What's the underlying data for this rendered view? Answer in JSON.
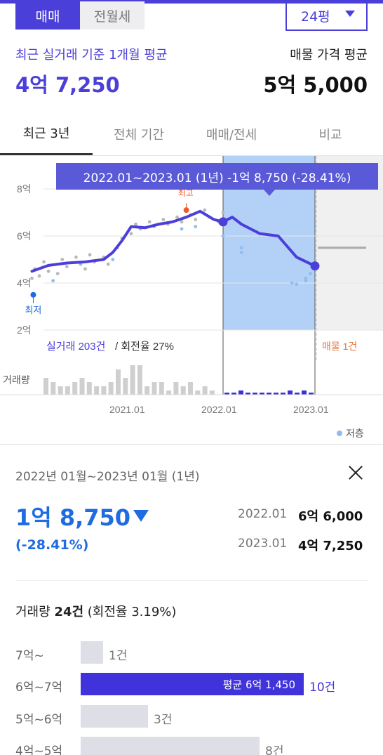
{
  "trade_toggle": {
    "buy": "매매",
    "rent": "전월세"
  },
  "size_select": {
    "value": "24평"
  },
  "summary": {
    "recent_label": "최근 실거래 기준 1개월 평균",
    "recent_value": "4억 7,250",
    "listing_label": "매물 가격 평균",
    "listing_value": "5억 5,000"
  },
  "tabs": [
    "최근 3년",
    "전체 기간",
    "매매/전세",
    "비교"
  ],
  "tooltip": "2022.01~2023.01 (1년)  -1억 8,750 (-28.41%)",
  "colors": {
    "accent": "#4b3fd9",
    "blue": "#1f6be0",
    "max_marker": "#f05a28",
    "listing": "#e8763c",
    "selection": "#b3d1f7"
  },
  "chart_data": {
    "type": "line",
    "y_ticks": [
      "8억",
      "6억",
      "4억",
      "2억"
    ],
    "x_ticks": [
      "2021.01",
      "2022.01",
      "2023.01"
    ],
    "ylim": [
      2,
      8
    ],
    "y_unit": "억",
    "series": [
      {
        "values": [
          [
            2019.92,
            4.5
          ],
          [
            2020.1,
            4.75
          ],
          [
            2020.3,
            4.85
          ],
          [
            2020.5,
            4.9
          ],
          [
            2020.7,
            5.0
          ],
          [
            2020.8,
            5.3
          ],
          [
            2020.9,
            5.8
          ],
          [
            2021.0,
            6.4
          ],
          [
            2021.15,
            6.35
          ],
          [
            2021.3,
            6.5
          ],
          [
            2021.45,
            6.6
          ],
          [
            2021.6,
            6.8
          ],
          [
            2021.75,
            7.05
          ],
          [
            2021.9,
            6.7
          ],
          [
            2022.0,
            6.6
          ],
          [
            2022.1,
            6.8
          ],
          [
            2022.2,
            6.5
          ],
          [
            2022.4,
            6.1
          ],
          [
            2022.6,
            6.0
          ],
          [
            2022.8,
            5.1
          ],
          [
            2023.0,
            4.725
          ]
        ]
      }
    ],
    "scatter_gray": [
      [
        2019.92,
        4.2
      ],
      [
        2019.95,
        4.6
      ],
      [
        2020.0,
        4.3
      ],
      [
        2020.05,
        4.9
      ],
      [
        2020.1,
        4.5
      ],
      [
        2020.2,
        4.4
      ],
      [
        2020.25,
        5.0
      ],
      [
        2020.3,
        4.7
      ],
      [
        2020.4,
        5.1
      ],
      [
        2020.5,
        4.6
      ],
      [
        2020.55,
        5.2
      ],
      [
        2020.6,
        4.9
      ],
      [
        2020.7,
        5.1
      ],
      [
        2020.75,
        4.8
      ],
      [
        2020.85,
        5.5
      ],
      [
        2020.9,
        5.9
      ],
      [
        2021.0,
        6.1
      ],
      [
        2021.05,
        6.5
      ],
      [
        2021.1,
        6.3
      ],
      [
        2021.2,
        6.6
      ],
      [
        2021.25,
        6.4
      ],
      [
        2021.35,
        6.7
      ],
      [
        2021.4,
        6.5
      ],
      [
        2021.5,
        6.8
      ],
      [
        2021.55,
        6.6
      ],
      [
        2021.65,
        6.9
      ],
      [
        2021.7,
        6.7
      ],
      [
        2021.8,
        7.1
      ],
      [
        2021.85,
        6.8
      ],
      [
        2021.95,
        6.6
      ],
      [
        2022.0,
        7.0
      ]
    ],
    "scatter_blue": [
      [
        2020.15,
        4.1
      ],
      [
        2020.45,
        4.8
      ],
      [
        2020.8,
        5.0
      ],
      [
        2021.55,
        6.3
      ],
      [
        2021.7,
        6.4
      ],
      [
        2022.0,
        6.0
      ],
      [
        2022.2,
        5.5
      ],
      [
        2022.2,
        5.3
      ],
      [
        2022.75,
        4.0
      ],
      [
        2022.8,
        3.95
      ],
      [
        2022.9,
        4.2
      ],
      [
        2022.9,
        4.1
      ],
      [
        2022.95,
        4.4
      ]
    ],
    "low_point": {
      "x": 2019.95,
      "y": 3.5,
      "label": "최저"
    },
    "high_point": {
      "x": 2021.6,
      "y": 7.1,
      "label": "최고"
    },
    "selection": {
      "start": 2022.0,
      "end": 2023.0
    },
    "listing_level": 5.5,
    "volume_label": "거래량",
    "volume_gray": [
      4,
      3,
      2,
      2,
      3,
      4,
      3,
      2,
      2,
      3,
      6,
      4,
      7,
      7,
      2,
      3,
      3,
      1,
      3,
      2,
      3,
      1,
      2,
      1
    ],
    "volume_blue": [
      1,
      1,
      2,
      1,
      1,
      1,
      1,
      1,
      1,
      2,
      1,
      2,
      1
    ],
    "footnote_trades": "실거래 203건",
    "footnote_turnover": "회전율 27%",
    "footnote_listing": "매물 1건",
    "legend": "저층"
  },
  "detail": {
    "period": "2022년 01월~2023년 01월 (1년)",
    "change": "1억 8,750",
    "change_pct": "(-28.41%)",
    "rows": [
      {
        "date": "2022.01",
        "value": "6억 6,000"
      },
      {
        "date": "2023.01",
        "value": "4억 7,250"
      }
    ],
    "volume_label": "거래량",
    "volume_count": "24건",
    "turnover": "(회전율 3.19%)",
    "histogram": [
      {
        "range": "7억~",
        "count": "1건",
        "n": 1
      },
      {
        "range": "6억~7억",
        "count": "10건",
        "n": 10,
        "avg": "평균 6억 1,450"
      },
      {
        "range": "5억~6억",
        "count": "3건",
        "n": 3
      },
      {
        "range": "4억~5억",
        "count": "8건",
        "n": 8
      }
    ]
  }
}
